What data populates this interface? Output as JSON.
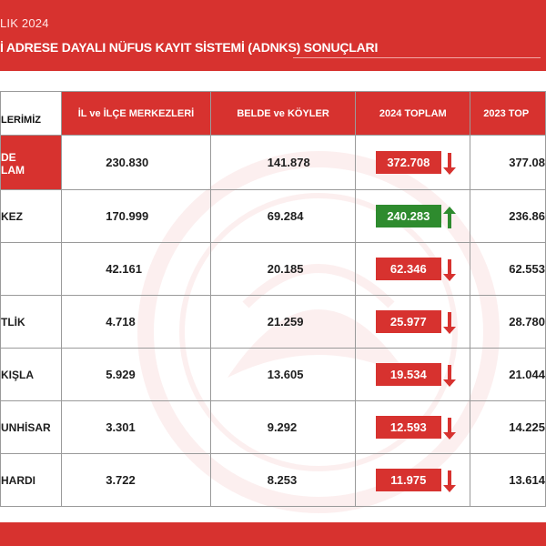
{
  "header": {
    "date": "LIK 2024",
    "title": "İ ADRESE DAYALI NÜFUS KAYIT SİSTEMİ (ADNKS) SONUÇLARI"
  },
  "table": {
    "headers": [
      "LERİMİZ",
      "İL ve İLÇE MERKEZLERİ",
      "BELDE ve KÖYLER",
      "2024 TOPLAM",
      "2023 TOP"
    ],
    "rows": [
      {
        "name": "DE\nLAM",
        "merkez": "230.830",
        "koy": "141.878",
        "t2024": "372.708",
        "trend": "down",
        "t2023": "377.08"
      },
      {
        "name": "KEZ",
        "merkez": "170.999",
        "koy": "69.284",
        "t2024": "240.283",
        "trend": "up",
        "t2023": "236.86"
      },
      {
        "name": "",
        "merkez": "42.161",
        "koy": "20.185",
        "t2024": "62.346",
        "trend": "down",
        "t2023": "62.553"
      },
      {
        "name": "TLİK",
        "merkez": "4.718",
        "koy": "21.259",
        "t2024": "25.977",
        "trend": "down",
        "t2023": "28.780"
      },
      {
        "name": "KIŞLA",
        "merkez": "5.929",
        "koy": "13.605",
        "t2024": "19.534",
        "trend": "down",
        "t2023": "21.044"
      },
      {
        "name": "UNHİSAR",
        "merkez": "3.301",
        "koy": "9.292",
        "t2024": "12.593",
        "trend": "down",
        "t2023": "14.225"
      },
      {
        "name": "HARDI",
        "merkez": "3.722",
        "koy": "8.253",
        "t2024": "11.975",
        "trend": "down",
        "t2023": "13.614"
      }
    ]
  },
  "colors": {
    "brand": "#d7322f",
    "increase": "#2e8b2e",
    "decrease": "#d7322f"
  }
}
